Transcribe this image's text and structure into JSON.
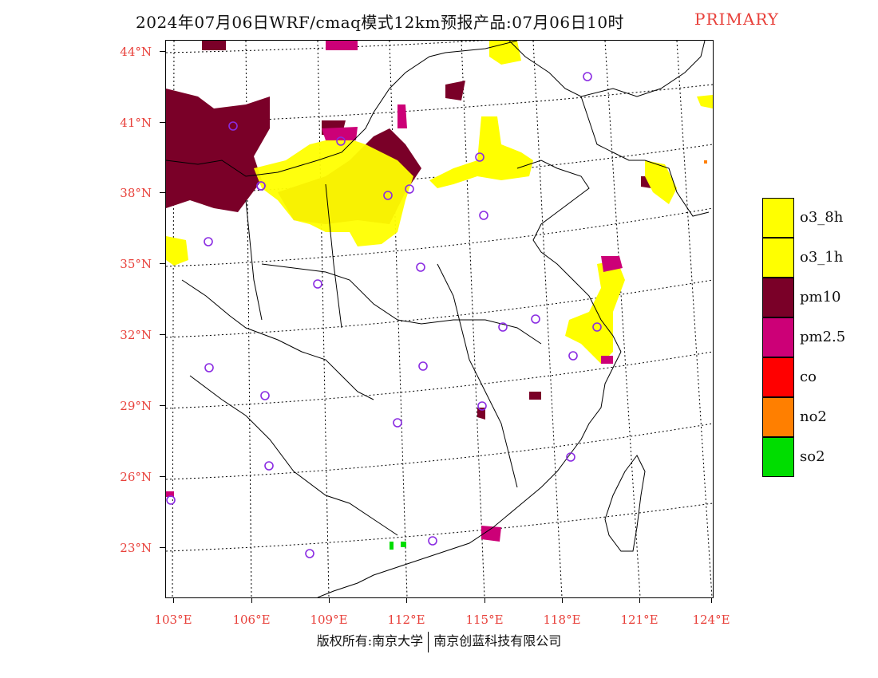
{
  "title": {
    "main": "2024年07月06日WRF/cmaq模式12km预报产品:07月06日10时",
    "tag": "PRIMARY"
  },
  "axes": {
    "lat_labels": [
      "44°N",
      "41°N",
      "38°N",
      "35°N",
      "32°N",
      "29°N",
      "26°N",
      "23°N"
    ],
    "lon_labels": [
      "103°E",
      "106°E",
      "109°E",
      "112°E",
      "115°E",
      "118°E",
      "121°E",
      "124°E"
    ]
  },
  "legend": [
    {
      "label": "o3_8h",
      "color": "#ffff00"
    },
    {
      "label": "o3_1h",
      "color": "#ffff00"
    },
    {
      "label": "pm10",
      "color": "#7a0028"
    },
    {
      "label": "pm2.5",
      "color": "#cc0077"
    },
    {
      "label": "co",
      "color": "#ff0000"
    },
    {
      "label": "no2",
      "color": "#ff7f00"
    },
    {
      "label": "so2",
      "color": "#00dd00"
    }
  ],
  "copyright": {
    "left": "版权所有:南京大学",
    "right": "南京创蓝科技有限公司"
  },
  "colors": {
    "axis_label": "#e8413b",
    "station_circle": "#8a2be2",
    "boundary": "#000000"
  }
}
